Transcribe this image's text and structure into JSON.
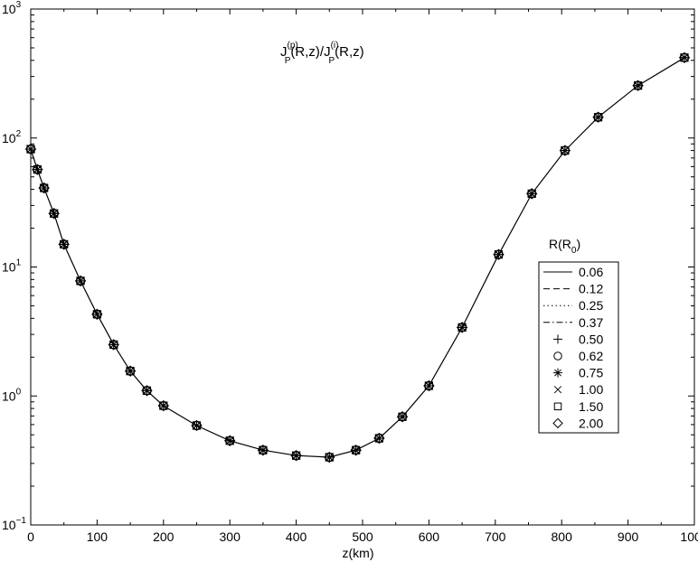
{
  "chart_data": {
    "type": "line",
    "title": "J_P^(p)(R,z)/J_P^(i)(R,z)",
    "title_parts": {
      "main1": "J",
      "sub1": "P",
      "sup1": "(p)",
      "mid": "(R,z)/J",
      "sub2": "P",
      "sup2": "(i)",
      "end": "(R,z)"
    },
    "xlabel": "z(km)",
    "ylabel": "",
    "xlim": [
      0,
      1000
    ],
    "ylim": [
      0.1,
      1000
    ],
    "yscale": "log",
    "grid": false,
    "x_ticks": [
      "0",
      "100",
      "200",
      "300",
      "400",
      "500",
      "600",
      "700",
      "800",
      "900",
      "1000"
    ],
    "y_ticks": [
      {
        "base": "10",
        "exp": "−1",
        "value": 0.1
      },
      {
        "base": "10",
        "exp": "0",
        "value": 1
      },
      {
        "base": "10",
        "exp": "1",
        "value": 10
      },
      {
        "base": "10",
        "exp": "2",
        "value": 100
      },
      {
        "base": "10",
        "exp": "3",
        "value": 1000
      }
    ],
    "legend": {
      "placement": "right",
      "title_main": "R(R",
      "title_sub": "0",
      "title_end": ")",
      "entries": [
        {
          "label": "0.06",
          "style": "solid"
        },
        {
          "label": "0.12",
          "style": "dashed"
        },
        {
          "label": "0.25",
          "style": "dotted"
        },
        {
          "label": "0.37",
          "style": "dashdot"
        },
        {
          "label": "0.50",
          "marker": "plus"
        },
        {
          "label": "0.62",
          "marker": "circle"
        },
        {
          "label": "0.75",
          "marker": "star"
        },
        {
          "label": "1.00",
          "marker": "cross"
        },
        {
          "label": "1.50",
          "marker": "square"
        },
        {
          "label": "2.00",
          "marker": "diamond"
        }
      ]
    },
    "x": [
      0,
      10,
      20,
      35,
      50,
      75,
      100,
      125,
      150,
      175,
      200,
      250,
      300,
      350,
      400,
      450,
      490,
      525,
      560,
      600,
      650,
      705,
      755,
      805,
      855,
      915,
      985
    ],
    "y": [
      82,
      57,
      41,
      26,
      15,
      7.8,
      4.3,
      2.5,
      1.56,
      1.1,
      0.84,
      0.59,
      0.45,
      0.38,
      0.345,
      0.335,
      0.38,
      0.47,
      0.69,
      1.2,
      3.4,
      12.5,
      37,
      80,
      145,
      255,
      420
    ],
    "markers_on_points": [
      "plus",
      "circle",
      "star",
      "cross",
      "square",
      "diamond"
    ]
  }
}
